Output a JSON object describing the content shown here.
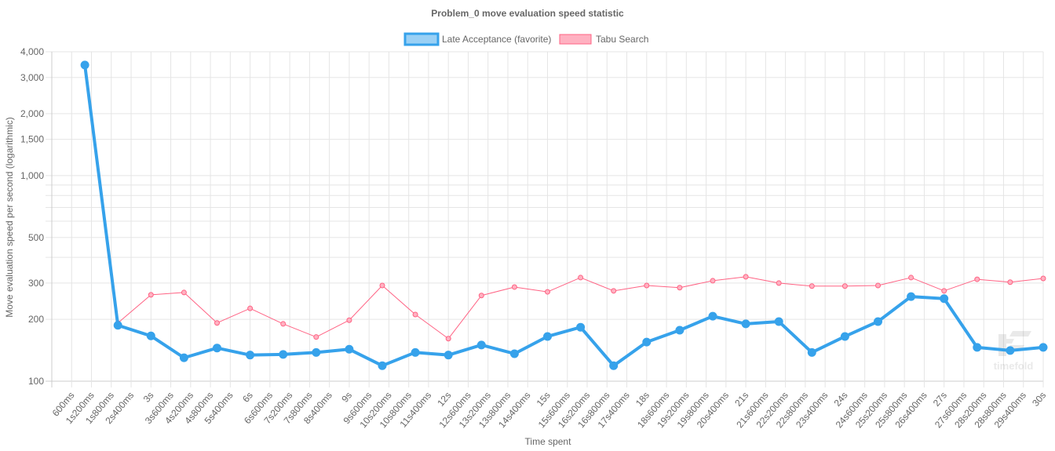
{
  "chart_data": {
    "type": "line",
    "title": "Problem_0 move evaluation speed statistic",
    "xlabel": "Time spent",
    "ylabel": "Move evaluation speed per second (logarithmic)",
    "y_scale": "log",
    "ylim": [
      100,
      4000
    ],
    "xlim_seconds": [
      0,
      30
    ],
    "grid": true,
    "legend_position": "top",
    "y_ticks": [
      {
        "value": 4000,
        "label": "4,000"
      },
      {
        "value": 3000,
        "label": "3,000"
      },
      {
        "value": 2000,
        "label": "2,000"
      },
      {
        "value": 1500,
        "label": "1,500"
      },
      {
        "value": 1000,
        "label": "1,000"
      },
      {
        "value": 900,
        "label": ""
      },
      {
        "value": 800,
        "label": ""
      },
      {
        "value": 700,
        "label": ""
      },
      {
        "value": 600,
        "label": ""
      },
      {
        "value": 500,
        "label": "500"
      },
      {
        "value": 400,
        "label": ""
      },
      {
        "value": 300,
        "label": "300"
      },
      {
        "value": 200,
        "label": "200"
      },
      {
        "value": 100,
        "label": "100"
      }
    ],
    "x_tick_labels": [
      "600ms",
      "1s200ms",
      "1s800ms",
      "2s400ms",
      "3s",
      "3s600ms",
      "4s200ms",
      "4s800ms",
      "5s400ms",
      "6s",
      "6s600ms",
      "7s200ms",
      "7s800ms",
      "8s400ms",
      "9s",
      "9s600ms",
      "10s200ms",
      "10s800ms",
      "11s400ms",
      "12s",
      "12s600ms",
      "13s200ms",
      "13s800ms",
      "14s400ms",
      "15s",
      "15s600ms",
      "16s200ms",
      "16s800ms",
      "17s400ms",
      "18s",
      "18s600ms",
      "19s200ms",
      "19s800ms",
      "20s400ms",
      "21s",
      "21s600ms",
      "22s200ms",
      "22s800ms",
      "23s400ms",
      "24s",
      "24s600ms",
      "25s200ms",
      "25s800ms",
      "26s400ms",
      "27s",
      "27s600ms",
      "28s200ms",
      "28s800ms",
      "29s400ms",
      "30s"
    ],
    "x_tick_step_seconds": 0.6,
    "x_seconds": [
      1,
      2,
      3,
      4,
      5,
      6,
      7,
      8,
      9,
      10,
      11,
      12,
      13,
      14,
      15,
      16,
      17,
      18,
      19,
      20,
      21,
      22,
      23,
      24,
      25,
      26,
      27,
      28,
      29,
      30
    ],
    "series": [
      {
        "name": "Tabu Search",
        "color": "#ff6384",
        "fill": "#ffb1c1",
        "values": [
          3470,
          192,
          263,
          270,
          192,
          226,
          190,
          164,
          198,
          292,
          211,
          161,
          261,
          287,
          272,
          319,
          275,
          292,
          285,
          308,
          322,
          300,
          290,
          290,
          292,
          319,
          275,
          313,
          303,
          316
        ]
      },
      {
        "name": "Late Acceptance (favorite)",
        "color": "#36a2eb",
        "fill": "#9ad0f5",
        "favorite": true,
        "values": [
          3450,
          187,
          166,
          130,
          145,
          134,
          135,
          138,
          143,
          119,
          138,
          134,
          150,
          136,
          165,
          183,
          119,
          155,
          177,
          207,
          190,
          195,
          138,
          165,
          195,
          258,
          252,
          146,
          141,
          146
        ]
      }
    ],
    "watermark": "timefold"
  }
}
